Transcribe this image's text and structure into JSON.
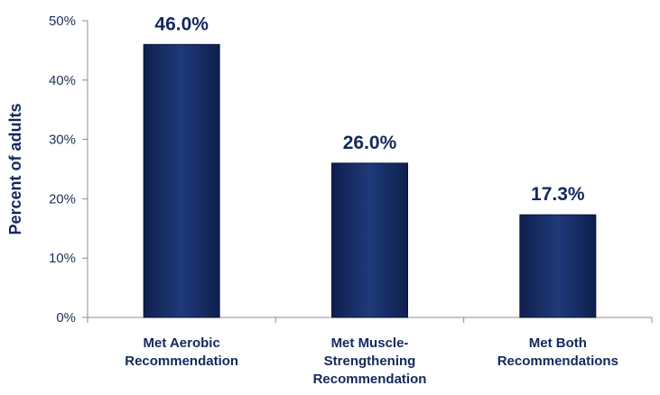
{
  "chart_data": {
    "type": "bar",
    "categories": [
      [
        "Met Aerobic",
        "Recommendation"
      ],
      [
        "Met Muscle-",
        "Strengthening",
        "Recommendation"
      ],
      [
        "Met Both",
        "Recommendations"
      ]
    ],
    "values": [
      46.0,
      26.0,
      17.3
    ],
    "data_labels": [
      "46.0%",
      "26.0%",
      "17.3%"
    ],
    "ylabel": "Percent of adults",
    "xlabel": "",
    "title": "",
    "ylim": [
      0,
      50
    ],
    "yticks": [
      0,
      10,
      20,
      30,
      40,
      50
    ],
    "ytick_labels": [
      "0%",
      "10%",
      "20%",
      "30%",
      "40%",
      "50%"
    ],
    "grid": false,
    "legend": "none",
    "bar_color": "#14285e",
    "bar_highlight": "#2e4a8f"
  }
}
